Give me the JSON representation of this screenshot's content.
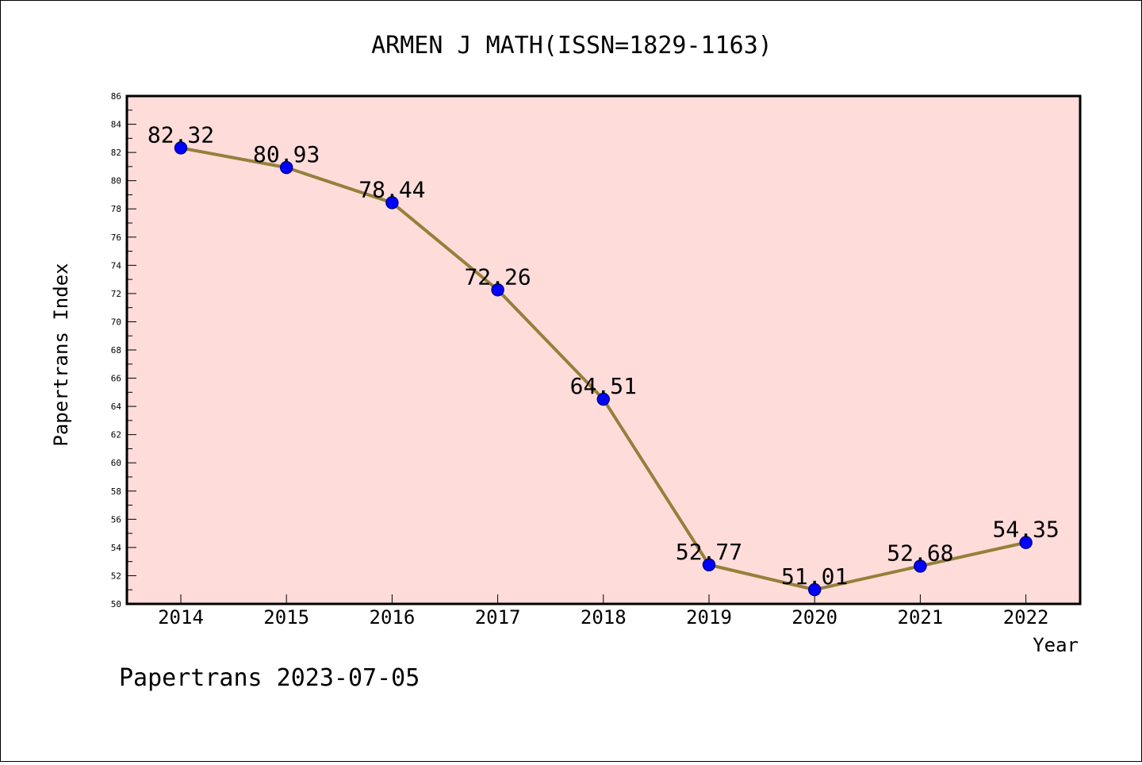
{
  "colors": {
    "plot_background": "#fddcda",
    "line": "#94803a",
    "marker_fill": "#0000ff",
    "marker_stroke": "#00008b",
    "axes": "#000000"
  },
  "chart_data": {
    "type": "line",
    "title": "ARMEN J MATH(ISSN=1829-1163)",
    "xlabel": "Year",
    "ylabel": "Papertrans Index",
    "categories": [
      "2014",
      "2015",
      "2016",
      "2017",
      "2018",
      "2019",
      "2020",
      "2021",
      "2022"
    ],
    "values": [
      82.32,
      80.93,
      78.44,
      72.26,
      64.51,
      52.77,
      51.01,
      52.68,
      54.35
    ],
    "data_labels": [
      "82.32",
      "80.93",
      "78.44",
      "72.26",
      "64.51",
      "52.77",
      "51.01",
      "52.68",
      "54.35"
    ],
    "ylim": [
      50,
      86
    ],
    "yticks": [
      50,
      52,
      54,
      56,
      58,
      60,
      62,
      64,
      66,
      68,
      70,
      72,
      74,
      76,
      78,
      80,
      82,
      84,
      86
    ],
    "grid": false,
    "marker": "circle"
  },
  "footer": "Papertrans 2023-07-05"
}
